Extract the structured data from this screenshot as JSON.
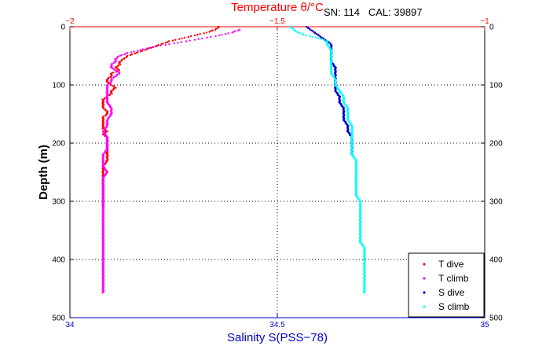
{
  "chart_data": {
    "type": "scatter",
    "title": "",
    "annotation": "SN: 114   CAL: 39897",
    "ylabel": "Depth (m)",
    "ylim": [
      0,
      500
    ],
    "y_reversed": true,
    "y_ticks": [
      0,
      100,
      200,
      300,
      400,
      500
    ],
    "top_axis": {
      "label": "Temperature θ/°C",
      "color": "#ff0000",
      "range": [
        -2,
        -1
      ],
      "ticks": [
        -2,
        -1.5,
        -1
      ],
      "tick_labels": [
        "−2",
        "−1.5",
        "−1"
      ]
    },
    "bottom_axis": {
      "label": "Salinity S(PSS−78)",
      "color": "#0000cc",
      "range": [
        34,
        35
      ],
      "ticks": [
        34,
        34.5,
        35
      ],
      "tick_labels": [
        "34",
        "34.5",
        "35"
      ]
    },
    "grid": "dotted",
    "legend_position": "bottom-right",
    "series": [
      {
        "name": "T dive",
        "axis": "top",
        "color": "#ff0000",
        "points": [
          [
            -1.64,
            0
          ],
          [
            -1.65,
            5
          ],
          [
            -1.67,
            10
          ],
          [
            -1.7,
            15
          ],
          [
            -1.73,
            20
          ],
          [
            -1.76,
            25
          ],
          [
            -1.78,
            30
          ],
          [
            -1.8,
            35
          ],
          [
            -1.82,
            40
          ],
          [
            -1.84,
            45
          ],
          [
            -1.86,
            50
          ],
          [
            -1.87,
            55
          ],
          [
            -1.88,
            60
          ],
          [
            -1.88,
            65
          ],
          [
            -1.89,
            70
          ],
          [
            -1.88,
            75
          ],
          [
            -1.9,
            80
          ],
          [
            -1.9,
            85
          ],
          [
            -1.91,
            90
          ],
          [
            -1.91,
            95
          ],
          [
            -1.9,
            100
          ],
          [
            -1.89,
            105
          ],
          [
            -1.9,
            110
          ],
          [
            -1.9,
            115
          ],
          [
            -1.91,
            120
          ],
          [
            -1.92,
            125
          ],
          [
            -1.92,
            130
          ],
          [
            -1.92,
            135
          ],
          [
            -1.92,
            140
          ],
          [
            -1.91,
            145
          ],
          [
            -1.91,
            150
          ],
          [
            -1.92,
            155
          ],
          [
            -1.92,
            160
          ],
          [
            -1.92,
            165
          ],
          [
            -1.92,
            170
          ],
          [
            -1.92,
            175
          ],
          [
            -1.91,
            180
          ],
          [
            -1.92,
            185
          ],
          [
            -1.91,
            190
          ],
          [
            -1.91,
            200
          ],
          [
            -1.91,
            210
          ],
          [
            -1.91,
            220
          ],
          [
            -1.91,
            230
          ],
          [
            -1.92,
            240
          ],
          [
            -1.92,
            250
          ],
          [
            -1.92,
            260
          ],
          [
            -1.92,
            270
          ],
          [
            -1.92,
            280
          ],
          [
            -1.92,
            290
          ],
          [
            -1.92,
            300
          ],
          [
            -1.92,
            310
          ]
        ]
      },
      {
        "name": "T climb",
        "axis": "top",
        "color": "#ff00ff",
        "points": [
          [
            -1.59,
            5
          ],
          [
            -1.61,
            10
          ],
          [
            -1.64,
            15
          ],
          [
            -1.68,
            20
          ],
          [
            -1.72,
            25
          ],
          [
            -1.76,
            30
          ],
          [
            -1.8,
            35
          ],
          [
            -1.83,
            40
          ],
          [
            -1.86,
            45
          ],
          [
            -1.88,
            50
          ],
          [
            -1.89,
            55
          ],
          [
            -1.89,
            60
          ],
          [
            -1.9,
            65
          ],
          [
            -1.9,
            70
          ],
          [
            -1.89,
            75
          ],
          [
            -1.88,
            80
          ],
          [
            -1.89,
            85
          ],
          [
            -1.9,
            90
          ],
          [
            -1.9,
            95
          ],
          [
            -1.91,
            100
          ],
          [
            -1.91,
            110
          ],
          [
            -1.91,
            120
          ],
          [
            -1.91,
            130
          ],
          [
            -1.9,
            140
          ],
          [
            -1.9,
            150
          ],
          [
            -1.91,
            160
          ],
          [
            -1.91,
            170
          ],
          [
            -1.92,
            180
          ],
          [
            -1.91,
            190
          ],
          [
            -1.91,
            200
          ],
          [
            -1.91,
            210
          ],
          [
            -1.92,
            220
          ],
          [
            -1.92,
            230
          ],
          [
            -1.92,
            240
          ],
          [
            -1.91,
            250
          ],
          [
            -1.92,
            260
          ],
          [
            -1.92,
            270
          ],
          [
            -1.92,
            280
          ],
          [
            -1.92,
            290
          ],
          [
            -1.92,
            300
          ],
          [
            -1.92,
            310
          ],
          [
            -1.92,
            320
          ],
          [
            -1.92,
            330
          ],
          [
            -1.92,
            340
          ],
          [
            -1.92,
            350
          ],
          [
            -1.92,
            360
          ],
          [
            -1.92,
            370
          ],
          [
            -1.92,
            380
          ],
          [
            -1.92,
            390
          ],
          [
            -1.92,
            400
          ],
          [
            -1.92,
            410
          ],
          [
            -1.92,
            420
          ],
          [
            -1.92,
            430
          ],
          [
            -1.92,
            440
          ],
          [
            -1.92,
            450
          ],
          [
            -1.92,
            457
          ]
        ]
      },
      {
        "name": "S dive",
        "axis": "bottom",
        "color": "#0000cc",
        "points": [
          [
            34.57,
            0
          ],
          [
            34.58,
            5
          ],
          [
            34.59,
            10
          ],
          [
            34.6,
            15
          ],
          [
            34.61,
            20
          ],
          [
            34.62,
            25
          ],
          [
            34.63,
            30
          ],
          [
            34.63,
            40
          ],
          [
            34.63,
            50
          ],
          [
            34.63,
            60
          ],
          [
            34.64,
            70
          ],
          [
            34.64,
            80
          ],
          [
            34.64,
            90
          ],
          [
            34.64,
            100
          ],
          [
            34.64,
            110
          ],
          [
            34.65,
            120
          ],
          [
            34.65,
            130
          ],
          [
            34.66,
            140
          ],
          [
            34.66,
            150
          ],
          [
            34.66,
            160
          ],
          [
            34.67,
            170
          ],
          [
            34.67,
            180
          ],
          [
            34.68,
            190
          ],
          [
            34.68,
            200
          ],
          [
            34.68,
            210
          ],
          [
            34.68,
            220
          ]
        ]
      },
      {
        "name": "S climb",
        "axis": "bottom",
        "color": "#00ffff",
        "points": [
          [
            34.53,
            0
          ],
          [
            34.54,
            5
          ],
          [
            34.55,
            10
          ],
          [
            34.57,
            15
          ],
          [
            34.6,
            20
          ],
          [
            34.62,
            25
          ],
          [
            34.62,
            30
          ],
          [
            34.63,
            40
          ],
          [
            34.63,
            50
          ],
          [
            34.63,
            60
          ],
          [
            34.63,
            70
          ],
          [
            34.63,
            80
          ],
          [
            34.64,
            90
          ],
          [
            34.64,
            100
          ],
          [
            34.65,
            110
          ],
          [
            34.66,
            120
          ],
          [
            34.66,
            130
          ],
          [
            34.67,
            140
          ],
          [
            34.67,
            150
          ],
          [
            34.67,
            160
          ],
          [
            34.68,
            170
          ],
          [
            34.68,
            180
          ],
          [
            34.68,
            190
          ],
          [
            34.68,
            200
          ],
          [
            34.68,
            210
          ],
          [
            34.68,
            220
          ],
          [
            34.69,
            230
          ],
          [
            34.69,
            240
          ],
          [
            34.69,
            250
          ],
          [
            34.69,
            260
          ],
          [
            34.69,
            270
          ],
          [
            34.69,
            280
          ],
          [
            34.69,
            290
          ],
          [
            34.7,
            300
          ],
          [
            34.7,
            310
          ],
          [
            34.7,
            320
          ],
          [
            34.7,
            330
          ],
          [
            34.7,
            340
          ],
          [
            34.7,
            350
          ],
          [
            34.7,
            360
          ],
          [
            34.7,
            370
          ],
          [
            34.71,
            380
          ],
          [
            34.71,
            390
          ],
          [
            34.71,
            400
          ],
          [
            34.71,
            410
          ],
          [
            34.71,
            420
          ],
          [
            34.71,
            430
          ],
          [
            34.71,
            440
          ],
          [
            34.71,
            450
          ],
          [
            34.71,
            457
          ]
        ]
      }
    ]
  }
}
